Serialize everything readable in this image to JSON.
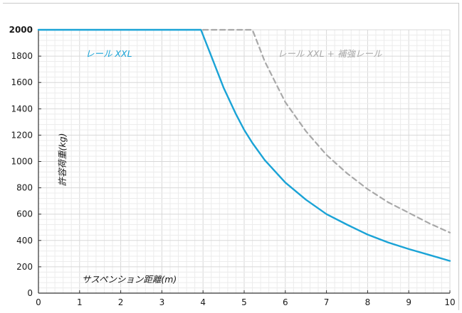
{
  "chart_data": {
    "type": "line",
    "title": "",
    "xlabel": "サスペンション距離(m)",
    "ylabel": "許容荷重(kg)",
    "xlim": [
      0,
      10
    ],
    "ylim": [
      0,
      2000
    ],
    "x_ticks": [
      "0",
      "1",
      "2",
      "3",
      "4",
      "5",
      "6",
      "7",
      "8",
      "9",
      "10"
    ],
    "y_ticks": [
      "0",
      "200",
      "400",
      "600",
      "800",
      "1000",
      "1200",
      "1400",
      "1600",
      "1800",
      "2000"
    ],
    "highlight_y_tick": "2000",
    "grid": true,
    "series": [
      {
        "name": "レール XXL",
        "color": "#1aa3d6",
        "style": "solid",
        "points": [
          [
            0,
            2000
          ],
          [
            3.95,
            2000
          ],
          [
            4.2,
            1800
          ],
          [
            4.5,
            1560
          ],
          [
            4.8,
            1360
          ],
          [
            5.0,
            1240
          ],
          [
            5.2,
            1140
          ],
          [
            5.5,
            1010
          ],
          [
            6.0,
            840
          ],
          [
            6.5,
            710
          ],
          [
            7.0,
            600
          ],
          [
            7.5,
            520
          ],
          [
            8.0,
            445
          ],
          [
            8.5,
            385
          ],
          [
            9.0,
            335
          ],
          [
            9.5,
            290
          ],
          [
            10.0,
            245
          ]
        ]
      },
      {
        "name": "レール XXL + 補強レール",
        "color": "#a8a8a8",
        "style": "dashed",
        "points": [
          [
            4.0,
            2000
          ],
          [
            5.2,
            2000
          ],
          [
            5.5,
            1760
          ],
          [
            6.0,
            1450
          ],
          [
            6.5,
            1230
          ],
          [
            7.0,
            1050
          ],
          [
            7.5,
            910
          ],
          [
            8.0,
            790
          ],
          [
            8.5,
            690
          ],
          [
            9.0,
            610
          ],
          [
            9.5,
            530
          ],
          [
            10.0,
            460
          ]
        ]
      }
    ]
  }
}
